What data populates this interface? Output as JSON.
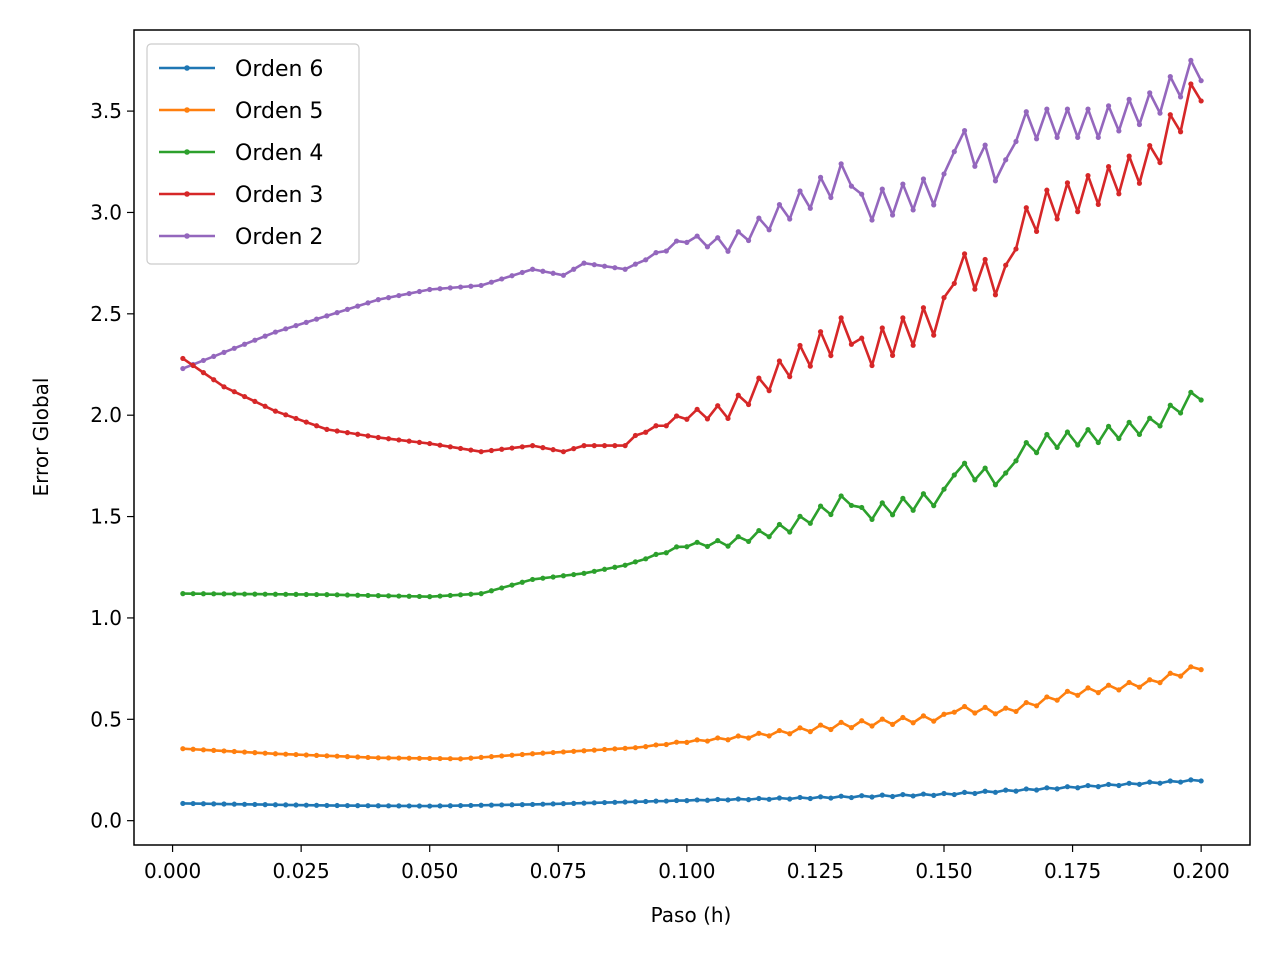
{
  "chart_data": {
    "type": "line",
    "title": "",
    "xlabel": "Paso (h)",
    "ylabel": "Error Global",
    "xlim": [
      -0.0075,
      0.2095
    ],
    "ylim": [
      -0.12,
      3.9
    ],
    "grid": false,
    "legend_position": "top-left",
    "x_ticks": [
      0.0,
      0.025,
      0.05,
      0.075,
      0.1,
      0.125,
      0.15,
      0.175,
      0.2
    ],
    "x_tick_labels": [
      "0.000",
      "0.025",
      "0.050",
      "0.075",
      "0.100",
      "0.125",
      "0.150",
      "0.175",
      "0.200"
    ],
    "y_ticks": [
      0.0,
      0.5,
      1.0,
      1.5,
      2.0,
      2.5,
      3.0,
      3.5
    ],
    "y_tick_labels": [
      "0.0",
      "0.5",
      "1.0",
      "1.5",
      "2.0",
      "2.5",
      "3.0",
      "3.5"
    ],
    "x": {
      "start": 0.002,
      "step": 0.002,
      "count": 100
    },
    "series": [
      {
        "name": "Orden 6",
        "color": "#1f77b4",
        "anchors": [
          [
            0.002,
            0.085
          ],
          [
            0.03,
            0.075
          ],
          [
            0.05,
            0.072
          ],
          [
            0.07,
            0.08
          ],
          [
            0.1,
            0.1
          ],
          [
            0.12,
            0.11
          ],
          [
            0.15,
            0.13
          ],
          [
            0.175,
            0.165
          ],
          [
            0.2,
            0.2
          ]
        ],
        "wobble": 0.008,
        "jumps": []
      },
      {
        "name": "Orden 5",
        "color": "#ff7f0e",
        "anchors": [
          [
            0.002,
            0.355
          ],
          [
            0.02,
            0.33
          ],
          [
            0.04,
            0.31
          ],
          [
            0.056,
            0.305
          ],
          [
            0.07,
            0.33
          ],
          [
            0.09,
            0.36
          ],
          [
            0.1,
            0.39
          ],
          [
            0.11,
            0.41
          ],
          [
            0.13,
            0.47
          ],
          [
            0.15,
            0.51
          ],
          [
            0.152,
            0.55
          ],
          [
            0.162,
            0.54
          ],
          [
            0.175,
            0.63
          ],
          [
            0.19,
            0.68
          ],
          [
            0.2,
            0.76
          ]
        ],
        "wobble": 0.03,
        "jumps": []
      },
      {
        "name": "Orden 4",
        "color": "#2ca02c",
        "anchors": [
          [
            0.002,
            1.12
          ],
          [
            0.03,
            1.115
          ],
          [
            0.05,
            1.105
          ],
          [
            0.06,
            1.12
          ],
          [
            0.07,
            1.19
          ],
          [
            0.08,
            1.22
          ],
          [
            0.088,
            1.26
          ],
          [
            0.1,
            1.36
          ],
          [
            0.108,
            1.37
          ],
          [
            0.12,
            1.45
          ],
          [
            0.132,
            1.59
          ],
          [
            0.134,
            1.51
          ],
          [
            0.15,
            1.6
          ],
          [
            0.152,
            1.74
          ],
          [
            0.162,
            1.68
          ],
          [
            0.164,
            1.81
          ],
          [
            0.17,
            1.87
          ],
          [
            0.18,
            1.9
          ],
          [
            0.19,
            1.95
          ],
          [
            0.2,
            2.11
          ]
        ],
        "wobble": 0.07,
        "jumps": []
      },
      {
        "name": "Orden 3",
        "color": "#d62728",
        "anchors": [
          [
            0.002,
            2.28
          ],
          [
            0.01,
            2.14
          ],
          [
            0.02,
            2.02
          ],
          [
            0.03,
            1.93
          ],
          [
            0.04,
            1.89
          ],
          [
            0.05,
            1.86
          ],
          [
            0.06,
            1.82
          ],
          [
            0.07,
            1.85
          ],
          [
            0.076,
            1.82
          ],
          [
            0.08,
            1.85
          ],
          [
            0.088,
            1.85
          ],
          [
            0.09,
            1.9
          ],
          [
            0.1,
            2.0
          ],
          [
            0.108,
            2.02
          ],
          [
            0.12,
            2.25
          ],
          [
            0.132,
            2.43
          ],
          [
            0.134,
            2.3
          ],
          [
            0.15,
            2.5
          ],
          [
            0.152,
            2.73
          ],
          [
            0.162,
            2.66
          ],
          [
            0.164,
            2.9
          ],
          [
            0.17,
            3.03
          ],
          [
            0.18,
            3.12
          ],
          [
            0.19,
            3.25
          ],
          [
            0.2,
            3.63
          ]
        ],
        "wobble": 0.16,
        "jumps": []
      },
      {
        "name": "Orden 2",
        "color": "#9467bd",
        "anchors": [
          [
            0.002,
            2.23
          ],
          [
            0.01,
            2.31
          ],
          [
            0.02,
            2.41
          ],
          [
            0.03,
            2.49
          ],
          [
            0.04,
            2.57
          ],
          [
            0.05,
            2.62
          ],
          [
            0.06,
            2.64
          ],
          [
            0.07,
            2.72
          ],
          [
            0.076,
            2.69
          ],
          [
            0.08,
            2.75
          ],
          [
            0.088,
            2.72
          ],
          [
            0.1,
            2.87
          ],
          [
            0.108,
            2.84
          ],
          [
            0.12,
            3.02
          ],
          [
            0.132,
            3.2
          ],
          [
            0.134,
            3.02
          ],
          [
            0.15,
            3.12
          ],
          [
            0.152,
            3.37
          ],
          [
            0.162,
            3.19
          ],
          [
            0.164,
            3.42
          ],
          [
            0.17,
            3.44
          ],
          [
            0.18,
            3.44
          ],
          [
            0.19,
            3.52
          ],
          [
            0.2,
            3.72
          ]
        ],
        "wobble": 0.14,
        "jumps": []
      }
    ]
  }
}
